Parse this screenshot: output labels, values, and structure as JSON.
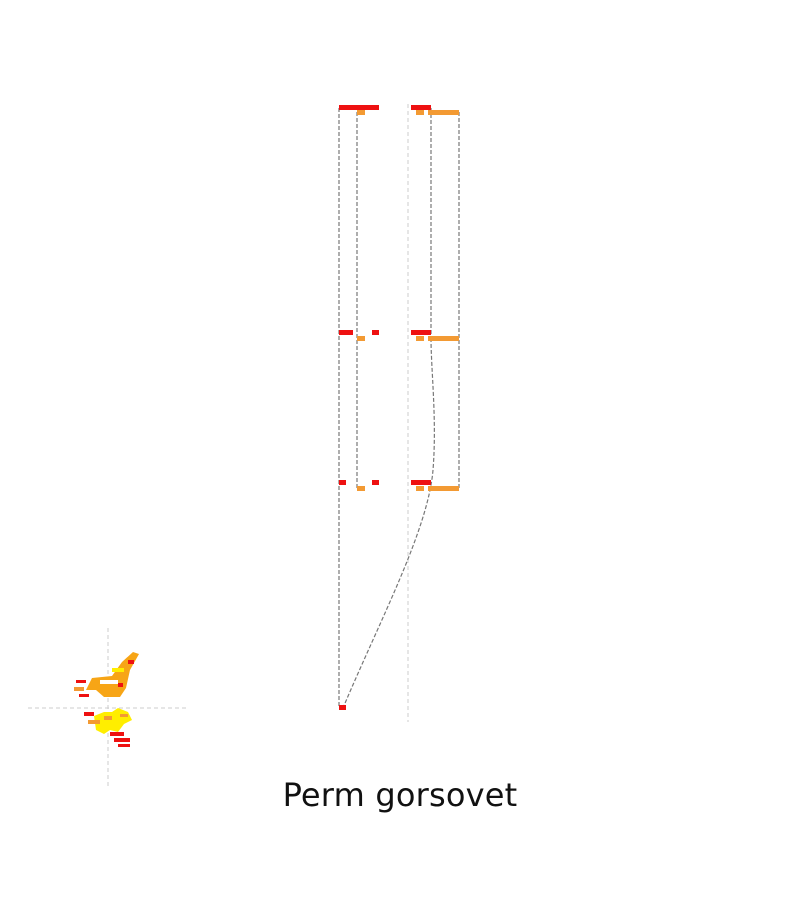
{
  "title": "Perm gorsovet",
  "colors": {
    "red": "#ee1111",
    "orange": "#f39a33",
    "gold": "#f7a516",
    "yellow": "#ffee00",
    "line": "#777777",
    "guide": "#cccccc"
  }
}
